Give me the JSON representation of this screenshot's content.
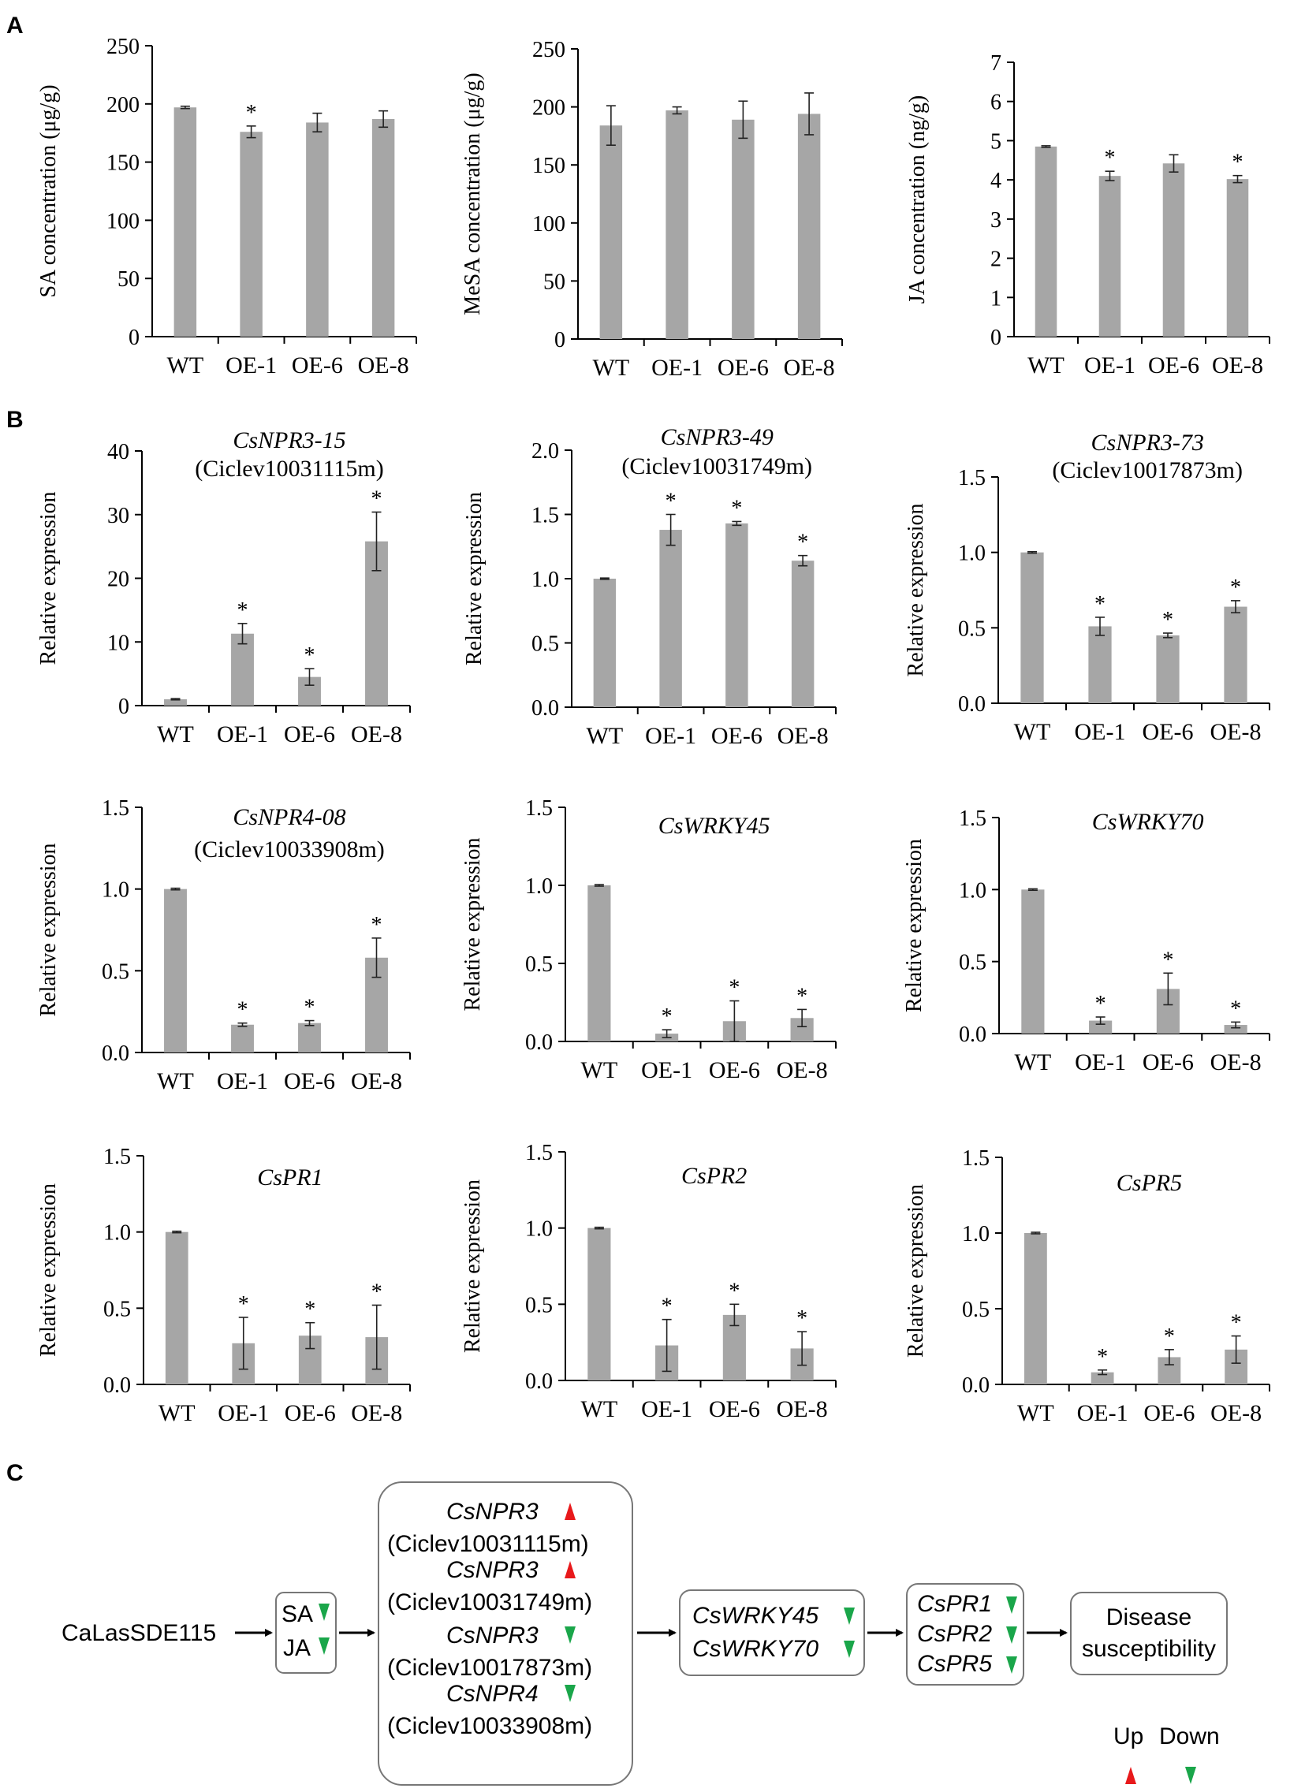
{
  "panel_labels": {
    "a": "A",
    "b": "B",
    "c": "C"
  },
  "colors": {
    "bar": "#a6a6a6",
    "axis": "#000000",
    "up": "#e8191b",
    "down": "#1aa64a"
  },
  "chart_data": [
    {
      "id": "sa",
      "type": "bar",
      "title": "",
      "subtitle": "",
      "ylabel": "SA concentration (μg/g)",
      "categories": [
        "WT",
        "OE-1",
        "OE-6",
        "OE-8"
      ],
      "values": [
        197,
        176,
        184,
        187
      ],
      "errors": [
        1,
        5,
        8,
        7
      ],
      "significant": [
        false,
        true,
        false,
        false
      ],
      "ylim": [
        0,
        250
      ],
      "yticks": [
        0,
        50,
        100,
        150,
        200,
        250
      ],
      "ytick_labels": [
        "0",
        "50",
        "100",
        "150",
        "200",
        "250"
      ]
    },
    {
      "id": "mesa",
      "type": "bar",
      "title": "",
      "subtitle": "",
      "ylabel": "MeSA concentration (μg/g)",
      "categories": [
        "WT",
        "OE-1",
        "OE-6",
        "OE-8"
      ],
      "values": [
        184,
        197,
        189,
        194
      ],
      "errors": [
        17,
        3,
        16,
        18
      ],
      "significant": [
        false,
        false,
        false,
        false
      ],
      "ylim": [
        0,
        250
      ],
      "yticks": [
        0,
        50,
        100,
        150,
        200,
        250
      ],
      "ytick_labels": [
        "0",
        "50",
        "100",
        "150",
        "200",
        "250"
      ]
    },
    {
      "id": "ja",
      "type": "bar",
      "title": "",
      "subtitle": "",
      "ylabel": "JA concentration (ng/g)",
      "categories": [
        "WT",
        "OE-1",
        "OE-6",
        "OE-8"
      ],
      "values": [
        4.85,
        4.1,
        4.42,
        4.02
      ],
      "errors": [
        0.02,
        0.12,
        0.22,
        0.09
      ],
      "significant": [
        false,
        true,
        false,
        true
      ],
      "ylim": [
        0,
        7
      ],
      "yticks": [
        0,
        1,
        2,
        3,
        4,
        5,
        6,
        7
      ],
      "ytick_labels": [
        "0",
        "1",
        "2",
        "3",
        "4",
        "5",
        "6",
        "7"
      ]
    },
    {
      "id": "npr3_15",
      "type": "bar",
      "title": "CsNPR3-15",
      "subtitle": "(Ciclev10031115m)",
      "ylabel": "Relative  expression",
      "categories": [
        "WT",
        "OE-1",
        "OE-6",
        "OE-8"
      ],
      "values": [
        1.0,
        11.3,
        4.5,
        25.8
      ],
      "errors": [
        0.1,
        1.6,
        1.3,
        4.6
      ],
      "significant": [
        false,
        true,
        true,
        true
      ],
      "ylim": [
        0,
        40
      ],
      "yticks": [
        0,
        10,
        20,
        30,
        40
      ],
      "ytick_labels": [
        "0",
        "10",
        "20",
        "30",
        "40"
      ]
    },
    {
      "id": "npr3_49",
      "type": "bar",
      "title": "CsNPR3-49",
      "subtitle": "(Ciclev10031749m)",
      "ylabel": "Relative  expression",
      "categories": [
        "WT",
        "OE-1",
        "OE-6",
        "OE-8"
      ],
      "values": [
        1.0,
        1.38,
        1.43,
        1.14
      ],
      "errors": [
        0.005,
        0.12,
        0.015,
        0.04
      ],
      "significant": [
        false,
        true,
        true,
        true
      ],
      "ylim": [
        0,
        2.0
      ],
      "yticks": [
        0,
        0.5,
        1.0,
        1.5,
        2.0
      ],
      "ytick_labels": [
        "0.0",
        "0.5",
        "1.0",
        "1.5",
        "2.0"
      ]
    },
    {
      "id": "npr3_73",
      "type": "bar",
      "title": "CsNPR3-73",
      "subtitle": "(Ciclev10017873m)",
      "ylabel": "Relative  expression",
      "categories": [
        "WT",
        "OE-1",
        "OE-6",
        "OE-8"
      ],
      "values": [
        1.0,
        0.51,
        0.45,
        0.64
      ],
      "errors": [
        0.005,
        0.06,
        0.015,
        0.04
      ],
      "significant": [
        false,
        true,
        true,
        true
      ],
      "ylim": [
        0,
        1.5
      ],
      "yticks": [
        0,
        0.5,
        1.0,
        1.5
      ],
      "ytick_labels": [
        "0.0",
        "0.5",
        "1.0",
        "1.5"
      ]
    },
    {
      "id": "npr4_08",
      "type": "bar",
      "title": "CsNPR4-08",
      "subtitle": "(Ciclev10033908m)",
      "ylabel": "Relative  expression",
      "categories": [
        "WT",
        "OE-1",
        "OE-6",
        "OE-8"
      ],
      "values": [
        1.0,
        0.17,
        0.18,
        0.58
      ],
      "errors": [
        0.005,
        0.01,
        0.015,
        0.12
      ],
      "significant": [
        false,
        true,
        true,
        true
      ],
      "ylim": [
        0,
        1.5
      ],
      "yticks": [
        0,
        0.5,
        1.0,
        1.5
      ],
      "ytick_labels": [
        "0.0",
        "0.5",
        "1.0",
        "1.5"
      ]
    },
    {
      "id": "wrky45",
      "type": "bar",
      "title": "CsWRKY45",
      "subtitle": "",
      "ylabel": "Relative  expression",
      "categories": [
        "WT",
        "OE-1",
        "OE-6",
        "OE-8"
      ],
      "values": [
        1.0,
        0.05,
        0.13,
        0.15
      ],
      "errors": [
        0.005,
        0.025,
        0.13,
        0.055
      ],
      "significant": [
        false,
        true,
        true,
        true
      ],
      "ylim": [
        0,
        1.5
      ],
      "yticks": [
        0,
        0.5,
        1.0,
        1.5
      ],
      "ytick_labels": [
        "0.0",
        "0.5",
        "1.0",
        "1.5"
      ]
    },
    {
      "id": "wrky70",
      "type": "bar",
      "title": "CsWRKY70",
      "subtitle": "",
      "ylabel": "Relative  expression",
      "categories": [
        "WT",
        "OE-1",
        "OE-6",
        "OE-8"
      ],
      "values": [
        1.0,
        0.09,
        0.31,
        0.06
      ],
      "errors": [
        0.005,
        0.025,
        0.11,
        0.02
      ],
      "significant": [
        false,
        true,
        true,
        true
      ],
      "ylim": [
        0,
        1.5
      ],
      "yticks": [
        0,
        0.5,
        1.0,
        1.5
      ],
      "ytick_labels": [
        "0.0",
        "0.5",
        "1.0",
        "1.5"
      ]
    },
    {
      "id": "pr1",
      "type": "bar",
      "title": "CsPR1",
      "subtitle": "",
      "ylabel": "Relative  expression",
      "categories": [
        "WT",
        "OE-1",
        "OE-6",
        "OE-8"
      ],
      "values": [
        1.0,
        0.27,
        0.32,
        0.31
      ],
      "errors": [
        0.005,
        0.17,
        0.085,
        0.21
      ],
      "significant": [
        false,
        true,
        true,
        true
      ],
      "ylim": [
        0,
        1.5
      ],
      "yticks": [
        0,
        0.5,
        1.0,
        1.5
      ],
      "ytick_labels": [
        "0.0",
        "0.5",
        "1.0",
        "1.5"
      ]
    },
    {
      "id": "pr2",
      "type": "bar",
      "title": "CsPR2",
      "subtitle": "",
      "ylabel": "Relative  expression",
      "categories": [
        "WT",
        "OE-1",
        "OE-6",
        "OE-8"
      ],
      "values": [
        1.0,
        0.23,
        0.43,
        0.21
      ],
      "errors": [
        0.005,
        0.17,
        0.07,
        0.11
      ],
      "significant": [
        false,
        true,
        true,
        true
      ],
      "ylim": [
        0,
        1.5
      ],
      "yticks": [
        0,
        0.5,
        1.0,
        1.5
      ],
      "ytick_labels": [
        "0.0",
        "0.5",
        "1.0",
        "1.5"
      ]
    },
    {
      "id": "pr5",
      "type": "bar",
      "title": "CsPR5",
      "subtitle": "",
      "ylabel": "Relative  expression",
      "categories": [
        "WT",
        "OE-1",
        "OE-6",
        "OE-8"
      ],
      "values": [
        1.0,
        0.08,
        0.18,
        0.23
      ],
      "errors": [
        0.005,
        0.015,
        0.05,
        0.09
      ],
      "significant": [
        false,
        true,
        true,
        true
      ],
      "ylim": [
        0,
        1.5
      ],
      "yticks": [
        0,
        0.5,
        1.0,
        1.5
      ],
      "ytick_labels": [
        "0.0",
        "0.5",
        "1.0",
        "1.5"
      ]
    }
  ],
  "diagram": {
    "effector": "CaLasSDE115",
    "hormones": [
      {
        "name": "SA",
        "direction": "down"
      },
      {
        "name": "JA",
        "direction": "down"
      }
    ],
    "npr_genes": [
      {
        "name": "CsNPR3",
        "locus": "(Ciclev10031115m)",
        "direction": "up"
      },
      {
        "name": "CsNPR3",
        "locus": "(Ciclev10031749m)",
        "direction": "up"
      },
      {
        "name": "CsNPR3",
        "locus": "(Ciclev10017873m)",
        "direction": "down"
      },
      {
        "name": "CsNPR4",
        "locus": "(Ciclev10033908m)",
        "direction": "down"
      }
    ],
    "wrky_genes": [
      {
        "name": "CsWRKY45",
        "direction": "down"
      },
      {
        "name": "CsWRKY70",
        "direction": "down"
      }
    ],
    "pr_genes": [
      {
        "name": "CsPR1",
        "direction": "down"
      },
      {
        "name": "CsPR2",
        "direction": "down"
      },
      {
        "name": "CsPR5",
        "direction": "down"
      }
    ],
    "outcome": [
      "Disease",
      "susceptibility"
    ],
    "legend": {
      "up": "Up",
      "down": "Down"
    }
  }
}
